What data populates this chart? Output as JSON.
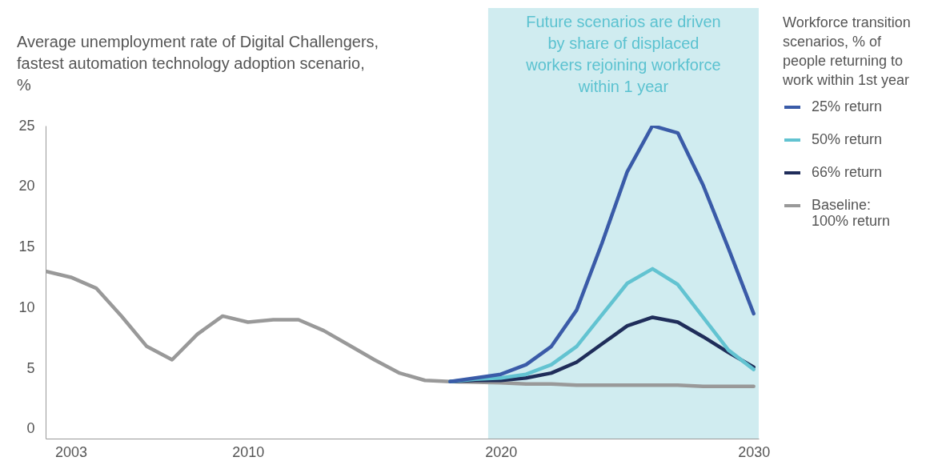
{
  "chart_data": {
    "type": "line",
    "ylabel": "Average unemployment rate of Digital Challengers, fastest automation technology adoption scenario, %",
    "legend_title": "Workforce transition scenarios, % of people returning to work within 1st year",
    "legend": "right",
    "x": [
      2002,
      2003,
      2004,
      2005,
      2006,
      2007,
      2008,
      2009,
      2010,
      2011,
      2012,
      2013,
      2014,
      2015,
      2016,
      2017,
      2018,
      2019,
      2020,
      2021,
      2022,
      2023,
      2024,
      2025,
      2026,
      2027,
      2028,
      2029,
      2030
    ],
    "xlim": [
      2002,
      2030.2
    ],
    "xticks": [
      2003,
      2010,
      2020,
      2030
    ],
    "ylim": [
      -0.8,
      25
    ],
    "yticks": [
      0,
      5,
      10,
      15,
      20,
      25
    ],
    "bands": [
      {
        "axis": "x",
        "from": 2019.5,
        "to": 2030.2,
        "label": "Future scenarios are driven by share of displaced workers rejoining workforce within 1 year",
        "color": "#d0ecf0"
      }
    ],
    "series": [
      {
        "name": "25% return",
        "color": "#3a5ba8",
        "values": [
          null,
          null,
          null,
          null,
          null,
          null,
          null,
          null,
          null,
          null,
          null,
          null,
          null,
          null,
          null,
          null,
          3.9,
          4.2,
          4.5,
          5.3,
          6.8,
          9.8,
          15.3,
          21.2,
          25.0,
          24.4,
          20.1,
          14.9,
          9.5
        ]
      },
      {
        "name": "50% return",
        "color": "#62c3d1",
        "values": [
          null,
          null,
          null,
          null,
          null,
          null,
          null,
          null,
          null,
          null,
          null,
          null,
          null,
          null,
          null,
          null,
          3.9,
          4.1,
          4.2,
          4.5,
          5.3,
          6.8,
          9.4,
          12.0,
          13.2,
          11.9,
          9.2,
          6.5,
          4.9
        ]
      },
      {
        "name": "66% return",
        "color": "#1f2d5a",
        "values": [
          null,
          null,
          null,
          null,
          null,
          null,
          null,
          null,
          null,
          null,
          null,
          null,
          null,
          null,
          null,
          null,
          3.9,
          4.0,
          4.0,
          4.2,
          4.6,
          5.5,
          7.0,
          8.5,
          9.2,
          8.8,
          7.6,
          6.3,
          5.1
        ]
      },
      {
        "name": "Baseline: 100% return",
        "color": "#999999",
        "values": [
          13.0,
          12.5,
          11.6,
          9.3,
          6.8,
          5.7,
          7.8,
          9.3,
          8.8,
          9.0,
          9.0,
          8.1,
          6.9,
          5.7,
          4.6,
          4.0,
          3.9,
          3.85,
          3.8,
          3.7,
          3.7,
          3.6,
          3.6,
          3.6,
          3.6,
          3.6,
          3.5,
          3.5,
          3.5
        ]
      }
    ]
  }
}
